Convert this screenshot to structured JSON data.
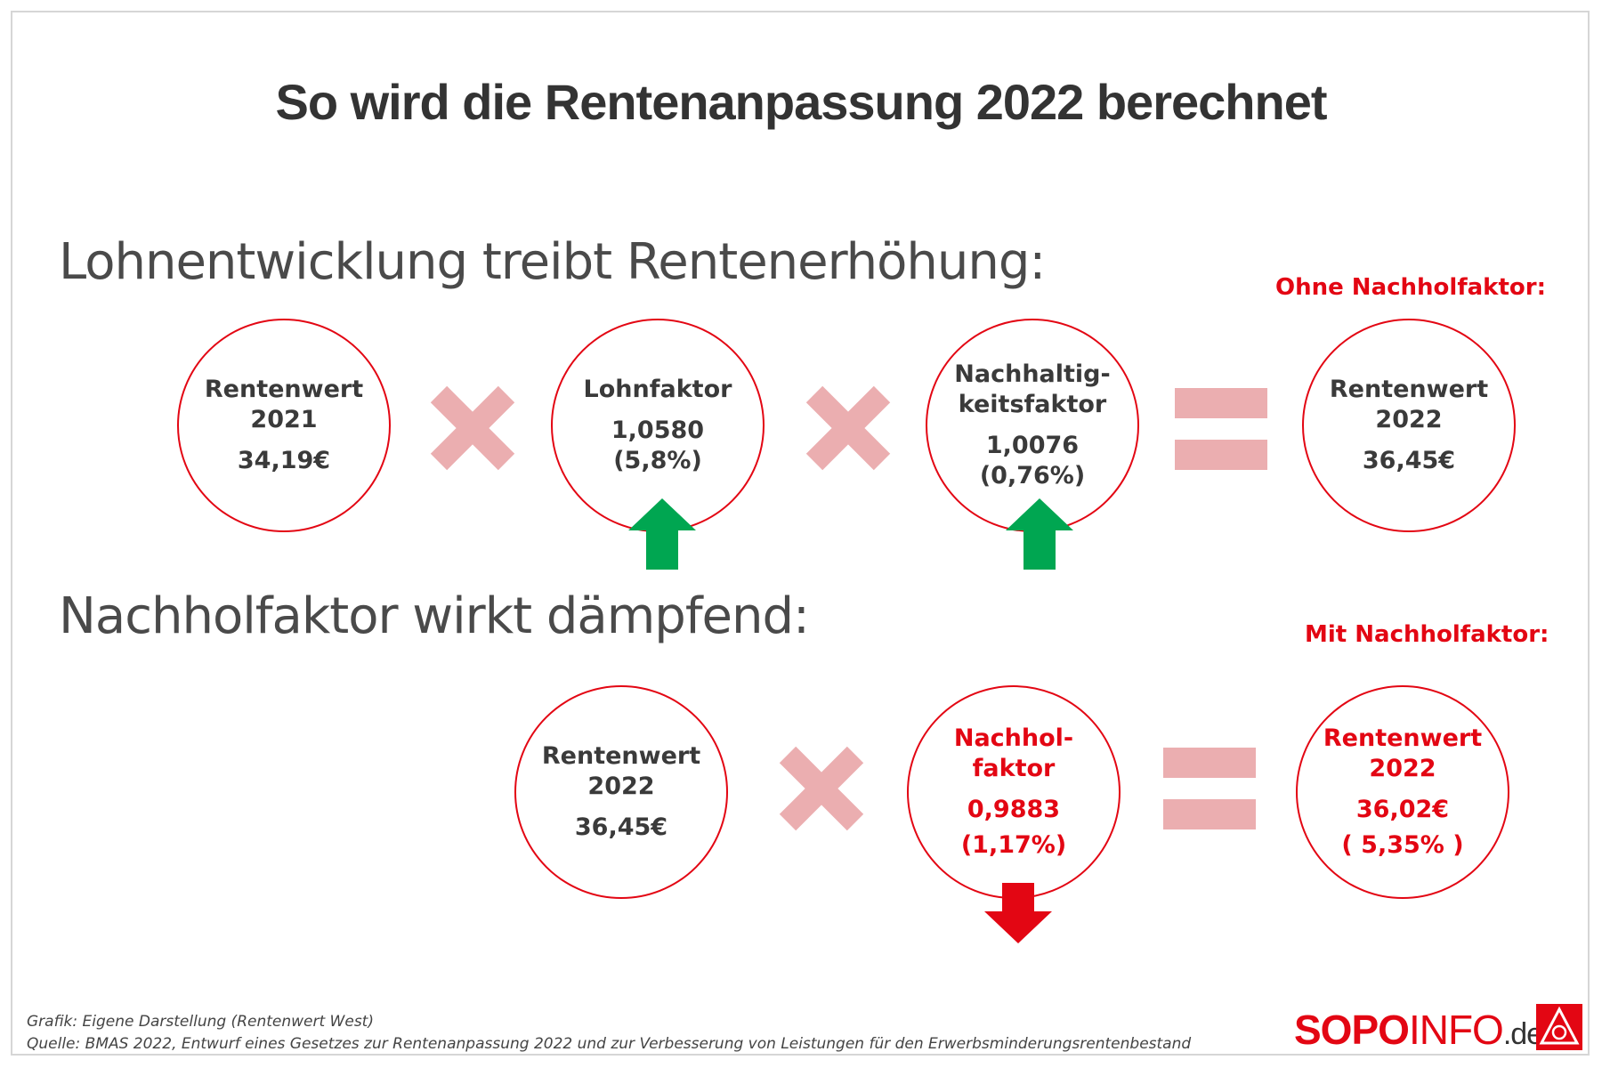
{
  "title": "So wird die Rentenanpassung 2022 berechnet",
  "section1": {
    "label": "Lohnentwicklung treibt Rentenerhöhung:",
    "note": "Ohne Nachholfaktor:",
    "c1": {
      "line1": "Rentenwert",
      "line2": "2021",
      "value": "34,19€"
    },
    "c2": {
      "line1": "Lohnfaktor",
      "value": "1,0580",
      "pct": "(5,8%)"
    },
    "c3": {
      "line1": "Nachhaltig-",
      "line2": "keitsfaktor",
      "value": "1,0076",
      "pct": "(0,76%)"
    },
    "c4": {
      "line1": "Rentenwert",
      "line2": "2022",
      "value": "36,45€"
    }
  },
  "section2": {
    "label": "Nachholfaktor wirkt dämpfend:",
    "note": "Mit Nachholfaktor:",
    "c1": {
      "line1": "Rentenwert",
      "line2": "2022",
      "value": "36,45€"
    },
    "c2": {
      "line1": "Nachhol-",
      "line2": "faktor",
      "value": "0,9883",
      "pct": "(1,17%)"
    },
    "c3": {
      "line1": "Rentenwert",
      "line2": "2022",
      "value": "36,02€",
      "pct": "( 5,35% )"
    }
  },
  "footer": {
    "line1": "Grafik: Eigene Darstellung (Rentenwert West)",
    "line2": "Quelle: BMAS 2022, Entwurf eines Gesetzes zur Rentenanpassung 2022 und zur Verbesserung von Leistungen für den Erwerbsminderungsrentenbestand"
  },
  "logo": {
    "sopo": "SOPO",
    "info": "INFO",
    "de": ".de",
    "badge_icon": "ig-metall-logo-icon"
  },
  "colors": {
    "red": "#e30613",
    "green": "#00a651",
    "pink": "#ebaeb0"
  }
}
